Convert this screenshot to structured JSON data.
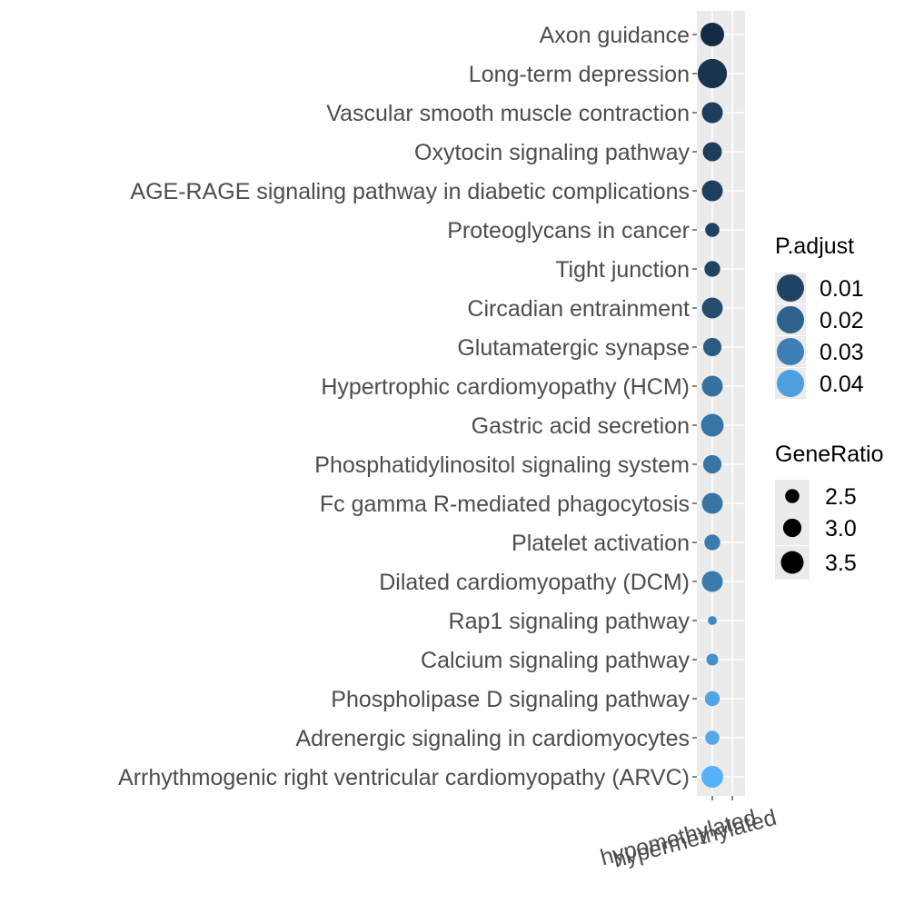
{
  "chart_data": {
    "type": "scatter",
    "x_categories": [
      "hypomethylated",
      "hypermethylated"
    ],
    "y_categories": [
      "Axon guidance",
      "Long-term depression",
      "Vascular smooth muscle contraction",
      "Oxytocin signaling pathway",
      "AGE-RAGE signaling pathway in diabetic complications",
      "Proteoglycans in cancer",
      "Tight junction",
      "Circadian entrainment",
      "Glutamatergic synapse",
      "Hypertrophic cardiomyopathy (HCM)",
      "Gastric acid secretion",
      "Phosphatidylinositol signaling system",
      "Fc gamma R-mediated phagocytosis",
      "Platelet activation",
      "Dilated cardiomyopathy (DCM)",
      "Rap1 signaling pathway",
      "Calcium signaling pathway",
      "Phospholipase D signaling pathway",
      "Adrenergic signaling in cardiomyocytes",
      "Arrhythmogenic right ventricular cardiomyopathy (ARVC)"
    ],
    "points": [
      {
        "x": "hypomethylated",
        "y": "Axon guidance",
        "gene_ratio": 3.6,
        "p_adjust": 0.002
      },
      {
        "x": "hypomethylated",
        "y": "Long-term depression",
        "gene_ratio": 4.2,
        "p_adjust": 0.005
      },
      {
        "x": "hypomethylated",
        "y": "Vascular smooth muscle contraction",
        "gene_ratio": 3.3,
        "p_adjust": 0.008
      },
      {
        "x": "hypomethylated",
        "y": "Oxytocin signaling pathway",
        "gene_ratio": 3.1,
        "p_adjust": 0.008
      },
      {
        "x": "hypomethylated",
        "y": "AGE-RAGE signaling pathway in diabetic complications",
        "gene_ratio": 3.3,
        "p_adjust": 0.009
      },
      {
        "x": "hypomethylated",
        "y": "Proteoglycans in cancer",
        "gene_ratio": 2.5,
        "p_adjust": 0.01
      },
      {
        "x": "hypomethylated",
        "y": "Tight junction",
        "gene_ratio": 2.7,
        "p_adjust": 0.01
      },
      {
        "x": "hypomethylated",
        "y": "Circadian entrainment",
        "gene_ratio": 3.3,
        "p_adjust": 0.013
      },
      {
        "x": "hypomethylated",
        "y": "Glutamatergic synapse",
        "gene_ratio": 3.0,
        "p_adjust": 0.018
      },
      {
        "x": "hypomethylated",
        "y": "Hypertrophic cardiomyopathy (HCM)",
        "gene_ratio": 3.3,
        "p_adjust": 0.025
      },
      {
        "x": "hypomethylated",
        "y": "Gastric acid secretion",
        "gene_ratio": 3.5,
        "p_adjust": 0.026
      },
      {
        "x": "hypomethylated",
        "y": "Phosphatidylinositol signaling system",
        "gene_ratio": 3.0,
        "p_adjust": 0.026
      },
      {
        "x": "hypomethylated",
        "y": "Fc gamma R-mediated phagocytosis",
        "gene_ratio": 3.3,
        "p_adjust": 0.026
      },
      {
        "x": "hypomethylated",
        "y": "Platelet activation",
        "gene_ratio": 2.7,
        "p_adjust": 0.028
      },
      {
        "x": "hypomethylated",
        "y": "Dilated cardiomyopathy (DCM)",
        "gene_ratio": 3.3,
        "p_adjust": 0.028
      },
      {
        "x": "hypomethylated",
        "y": "Rap1 signaling pathway",
        "gene_ratio": 1.8,
        "p_adjust": 0.033
      },
      {
        "x": "hypomethylated",
        "y": "Calcium signaling pathway",
        "gene_ratio": 2.2,
        "p_adjust": 0.035
      },
      {
        "x": "hypomethylated",
        "y": "Phospholipase D signaling pathway",
        "gene_ratio": 2.6,
        "p_adjust": 0.042
      },
      {
        "x": "hypomethylated",
        "y": "Adrenergic signaling in cardiomyocytes",
        "gene_ratio": 2.5,
        "p_adjust": 0.043
      },
      {
        "x": "hypomethylated",
        "y": "Arrhythmogenic right ventricular cardiomyopathy (ARVC)",
        "gene_ratio": 3.4,
        "p_adjust": 0.046
      }
    ],
    "color_legend": {
      "title": "P.adjust",
      "breaks": [
        0.01,
        0.02,
        0.03,
        0.04
      ]
    },
    "size_legend": {
      "title": "GeneRatio",
      "breaks": [
        2.5,
        3.0,
        3.5
      ]
    },
    "color_scale": {
      "low_pvalue": "#132b43",
      "high_pvalue": "#56b1f7"
    },
    "panel_background": "#ebebeb",
    "grid": true,
    "legend_position": "right"
  }
}
